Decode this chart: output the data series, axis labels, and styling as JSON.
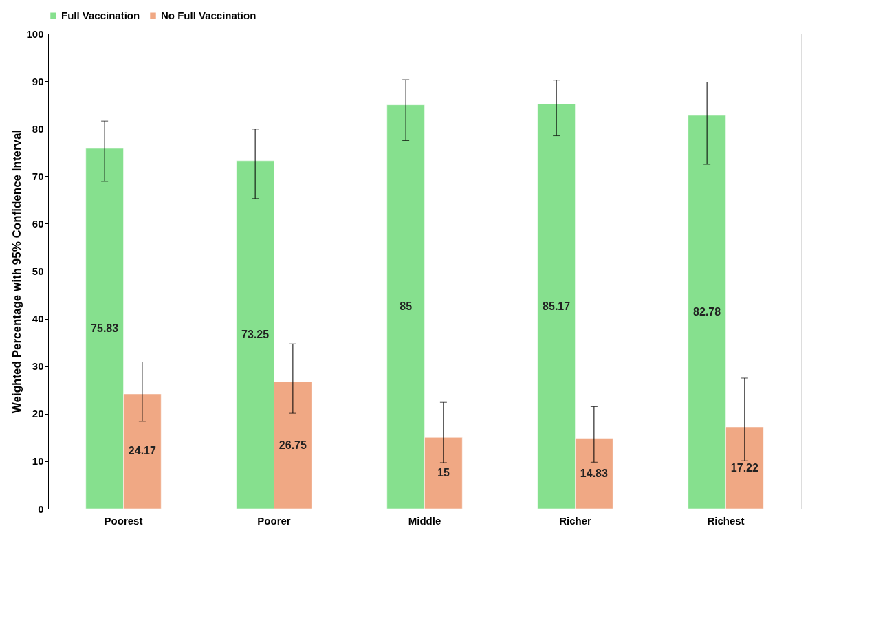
{
  "chart_data": {
    "type": "bar",
    "ylabel": "Weighted Percentage with 95% Confidence Interval",
    "categories": [
      "Poorest",
      "Poorer",
      "Middle",
      "Richer",
      "Richest"
    ],
    "series": [
      {
        "name": "Full Vaccination",
        "color": "#86e08e",
        "values": [
          75.83,
          73.25,
          85,
          85.17,
          82.78
        ],
        "errors": [
          [
            68.9,
            81.6
          ],
          [
            65.3,
            79.9
          ],
          [
            77.5,
            90.3
          ],
          [
            78.5,
            90.2
          ],
          [
            72.5,
            89.8
          ]
        ]
      },
      {
        "name": "No Full Vaccination",
        "color": "#f0a884",
        "values": [
          24.17,
          26.75,
          15,
          14.83,
          17.22
        ],
        "errors": [
          [
            18.4,
            30.9
          ],
          [
            20.1,
            34.7
          ],
          [
            9.7,
            22.4
          ],
          [
            9.8,
            21.5
          ],
          [
            10.1,
            27.5
          ]
        ]
      }
    ],
    "ylim": [
      0,
      100
    ],
    "yticks": [
      0,
      10,
      20,
      30,
      40,
      50,
      60,
      70,
      80,
      90,
      100
    ],
    "data_labels": true,
    "legend": "top",
    "grid": false
  }
}
